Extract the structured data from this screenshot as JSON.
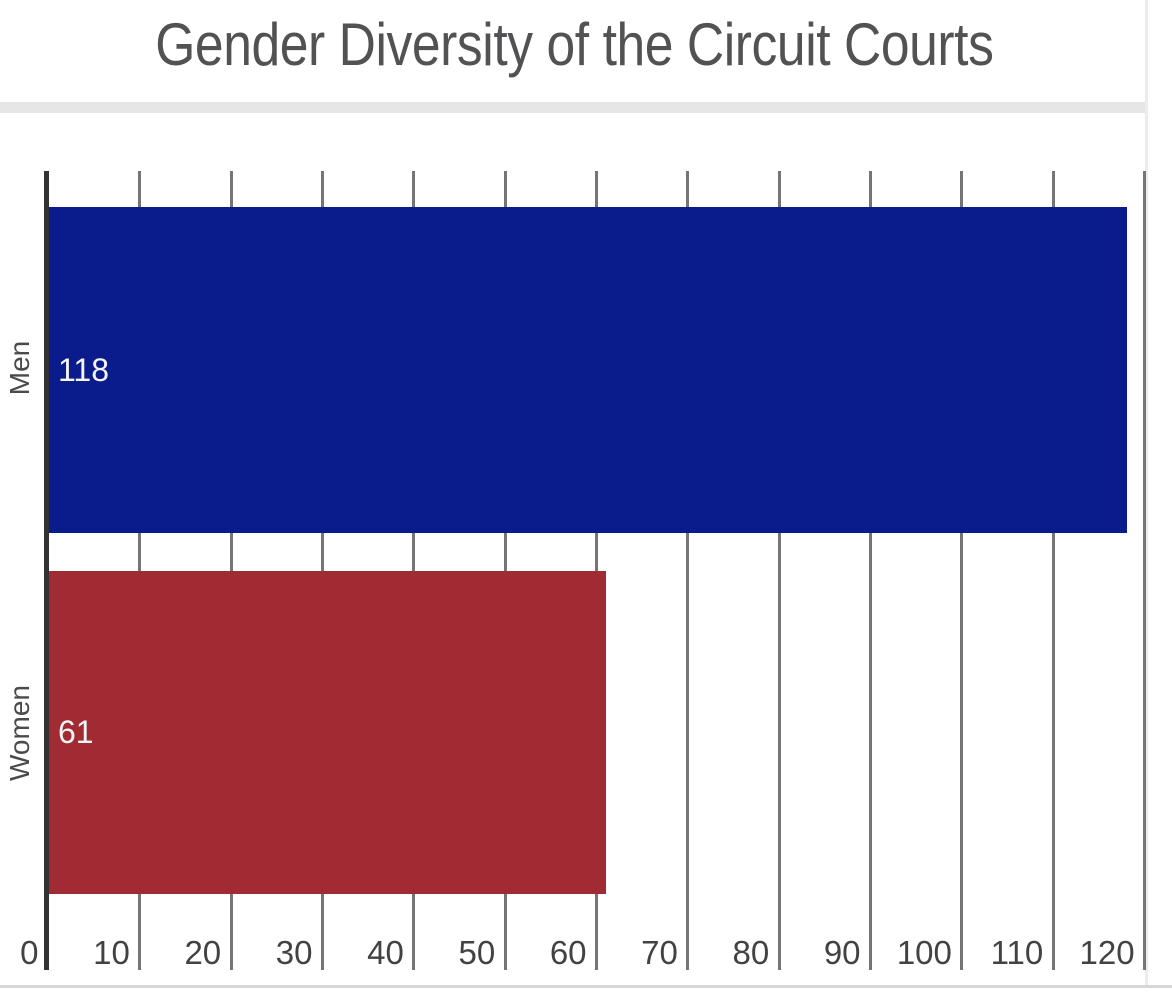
{
  "page": {
    "background_color": "#ffffff",
    "header_divider_color": "#e6e6e6",
    "right_border_color": "#ececec",
    "bottom_border_color": "#d6d6d6"
  },
  "chart_data": {
    "type": "bar",
    "orientation": "horizontal",
    "title": "Gender Diversity of the Circuit Courts",
    "title_color": "#525254",
    "categories": [
      "Men",
      "Women"
    ],
    "values": [
      118,
      61
    ],
    "series": [
      {
        "name": "Men",
        "value": 118,
        "color": "#0a1c8c"
      },
      {
        "name": "Women",
        "value": 61,
        "color": "#a02b33"
      }
    ],
    "value_label_color": "#f5f5f5",
    "xlabel": "",
    "ylabel": "",
    "xlim": [
      0,
      123
    ],
    "ticks": [
      0,
      10,
      20,
      30,
      40,
      50,
      60,
      70,
      80,
      90,
      100,
      110,
      120
    ],
    "tick_labels": [
      "0",
      "10",
      "20",
      "30",
      "40",
      "50",
      "60",
      "70",
      "80",
      "90",
      "100",
      "110",
      "120"
    ],
    "grid": "vertical-on",
    "gridline_color": "#757575",
    "axis_line_color": "#323232",
    "tick_label_color": "#424242",
    "category_label_color": "#4a4a4a",
    "legend": "none"
  }
}
